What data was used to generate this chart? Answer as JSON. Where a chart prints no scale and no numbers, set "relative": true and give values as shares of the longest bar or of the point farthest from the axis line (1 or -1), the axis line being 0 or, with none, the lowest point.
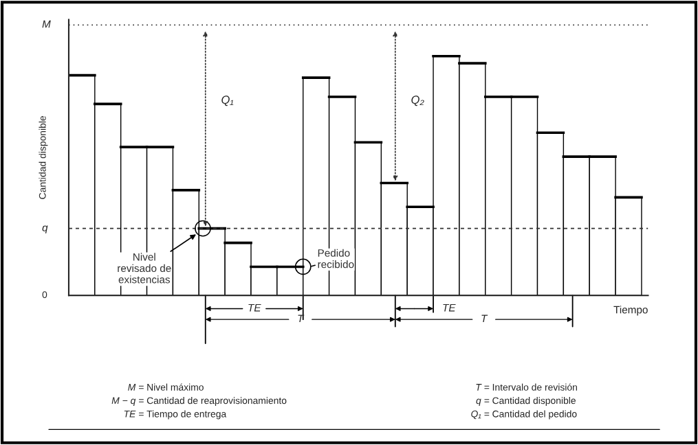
{
  "chart_data": {
    "type": "bar",
    "relative": true,
    "xlabel": "Tiempo",
    "ylabel": "Cantidad disponible",
    "categories": [
      null,
      null,
      null,
      null,
      null,
      null,
      null,
      null,
      null,
      null,
      null,
      null,
      null,
      null,
      null,
      null,
      null,
      null,
      null,
      null,
      null,
      null
    ],
    "values": [
      0.92,
      0.8,
      0.62,
      0.62,
      0.44,
      0.28,
      0.22,
      0.12,
      0.12,
      0.91,
      0.83,
      0.64,
      0.47,
      0.37,
      1.0,
      0.97,
      0.83,
      0.83,
      0.68,
      0.58,
      0.58,
      0.41
    ],
    "color": "#ffffff",
    "ref_lines": [
      {
        "axis": "y",
        "value": 1.13,
        "label": "M",
        "line_style": "dotted",
        "color": "#333333"
      },
      {
        "axis": "y",
        "value": 0.28,
        "label": "q",
        "line_style": "dashed",
        "color": "#333333"
      }
    ],
    "annotations": [
      "0",
      "Q₁",
      "Q₂",
      "Nivel\nrevisado de\nexistencias",
      "Pedido\nrecibido",
      "TE",
      "T",
      "TE",
      "T",
      "M = Nivel máximo",
      "M − q = Cantidad de reaprovisionamiento",
      "TE = Tiempo de entrega",
      "T = Intervalo de revisión",
      "q = Cantidad disponible",
      "Q₁ = Cantidad del pedido"
    ],
    "grid": false
  }
}
